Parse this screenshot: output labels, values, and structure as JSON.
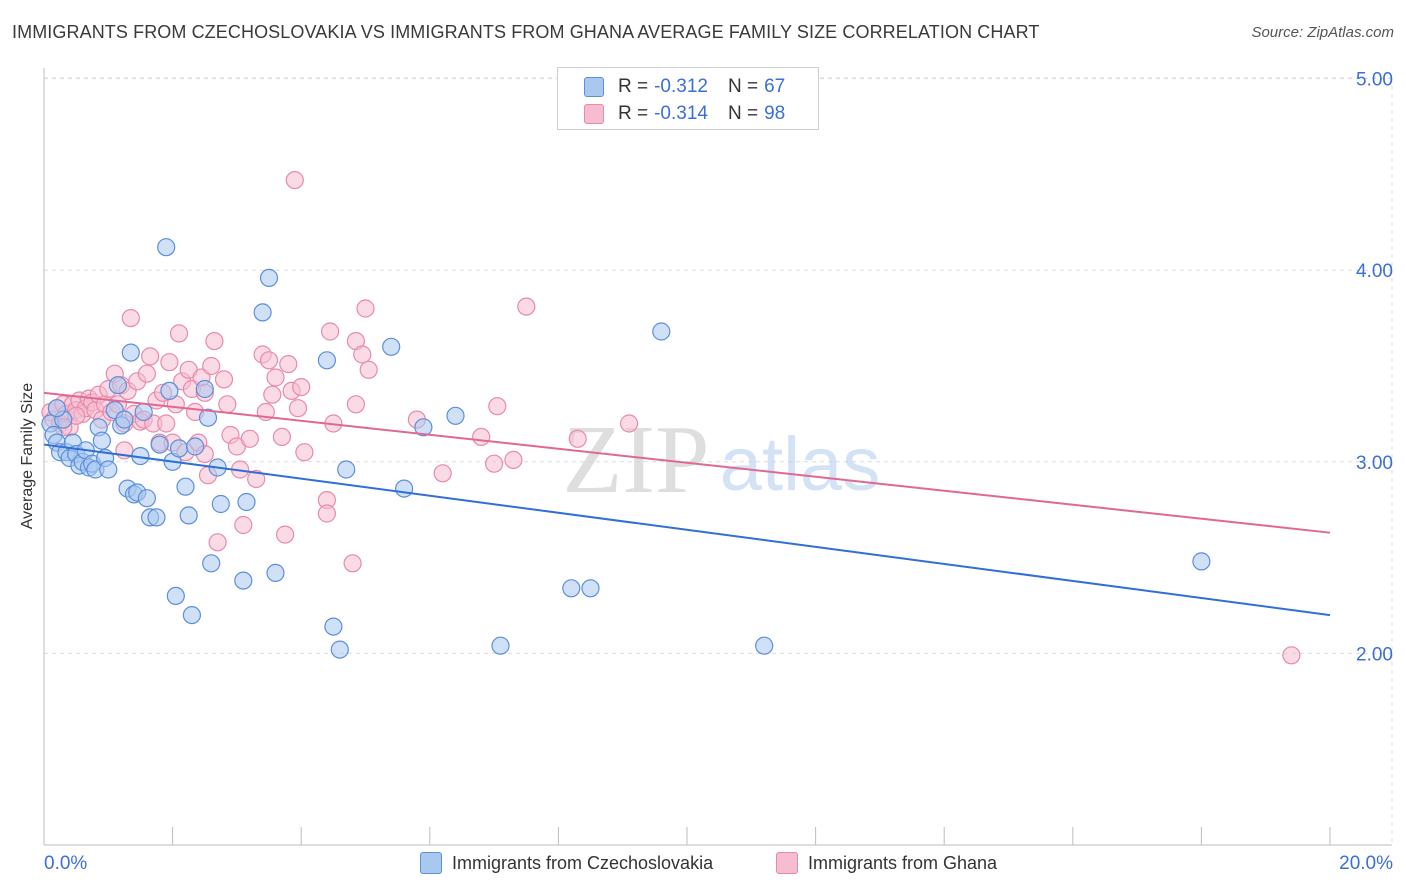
{
  "title": "IMMIGRANTS FROM CZECHOSLOVAKIA VS IMMIGRANTS FROM GHANA AVERAGE FAMILY SIZE CORRELATION CHART",
  "source": "Source: ZipAtlas.com",
  "watermark": {
    "zip": "ZIP",
    "atlas": "atlas"
  },
  "legend": {
    "rows": [
      {
        "r_label": "R =",
        "r_value": "-0.312",
        "n_label": "N =",
        "n_value": "67"
      },
      {
        "r_label": "R =",
        "r_value": "-0.314",
        "n_label": "N =",
        "n_value": "98"
      }
    ]
  },
  "colors": {
    "czech_fill": "#a9c8f0",
    "czech_stroke": "#5b8fdc",
    "czech_line": "#2f6fd6",
    "ghana_fill": "#f6bdd0",
    "ghana_stroke": "#e88aa9",
    "ghana_line": "#e06894",
    "axis_text": "#3a6fd8",
    "grid": "#dcdcdc"
  },
  "chart_data": {
    "type": "scatter",
    "xlabel": "",
    "ylabel": "Average Family Size",
    "xlim": [
      0,
      20
    ],
    "ylim": [
      1.0,
      5.1
    ],
    "x_tick_labels": [
      "0.0%",
      "20.0%"
    ],
    "y_ticks": [
      2.0,
      3.0,
      4.0,
      5.0
    ],
    "y_tick_labels": [
      "2.00",
      "3.00",
      "4.00",
      "5.00"
    ],
    "grid": true,
    "legend_position": "bottom",
    "series": [
      {
        "name": "Immigrants from Czechoslovakia",
        "trend": {
          "x": [
            0,
            20
          ],
          "y": [
            3.09,
            2.2
          ]
        },
        "points": [
          [
            0.1,
            3.2
          ],
          [
            0.15,
            3.14
          ],
          [
            0.2,
            3.1
          ],
          [
            0.25,
            3.05
          ],
          [
            0.3,
            3.22
          ],
          [
            0.35,
            3.05
          ],
          [
            0.4,
            3.02
          ],
          [
            0.45,
            3.1
          ],
          [
            0.5,
            3.04
          ],
          [
            0.55,
            2.98
          ],
          [
            0.6,
            3.0
          ],
          [
            0.65,
            3.06
          ],
          [
            0.7,
            2.97
          ],
          [
            0.75,
            2.99
          ],
          [
            0.8,
            2.96
          ],
          [
            0.85,
            3.18
          ],
          [
            0.9,
            3.11
          ],
          [
            0.95,
            3.02
          ],
          [
            1.0,
            2.96
          ],
          [
            1.1,
            3.27
          ],
          [
            1.15,
            3.4
          ],
          [
            1.2,
            3.19
          ],
          [
            1.25,
            3.22
          ],
          [
            1.3,
            2.86
          ],
          [
            1.35,
            3.57
          ],
          [
            1.4,
            2.83
          ],
          [
            1.45,
            2.84
          ],
          [
            1.5,
            3.03
          ],
          [
            1.55,
            3.26
          ],
          [
            1.6,
            2.81
          ],
          [
            1.65,
            2.71
          ],
          [
            1.75,
            2.71
          ],
          [
            1.8,
            3.09
          ],
          [
            1.9,
            4.12
          ],
          [
            1.95,
            3.37
          ],
          [
            2.0,
            3.0
          ],
          [
            2.05,
            2.3
          ],
          [
            2.1,
            3.07
          ],
          [
            2.2,
            2.87
          ],
          [
            2.25,
            2.72
          ],
          [
            2.3,
            2.2
          ],
          [
            2.35,
            3.08
          ],
          [
            2.5,
            3.38
          ],
          [
            2.55,
            3.23
          ],
          [
            2.6,
            2.47
          ],
          [
            2.7,
            2.97
          ],
          [
            2.75,
            2.78
          ],
          [
            3.1,
            2.38
          ],
          [
            3.15,
            2.79
          ],
          [
            3.4,
            3.78
          ],
          [
            3.5,
            3.96
          ],
          [
            3.6,
            2.42
          ],
          [
            4.4,
            3.53
          ],
          [
            4.5,
            2.14
          ],
          [
            4.6,
            2.02
          ],
          [
            4.7,
            2.96
          ],
          [
            5.4,
            3.6
          ],
          [
            5.6,
            2.86
          ],
          [
            5.9,
            3.18
          ],
          [
            6.4,
            3.24
          ],
          [
            7.1,
            2.04
          ],
          [
            8.2,
            2.34
          ],
          [
            8.5,
            2.34
          ],
          [
            9.6,
            3.68
          ],
          [
            11.2,
            2.04
          ],
          [
            18.0,
            2.48
          ],
          [
            0.2,
            3.28
          ]
        ]
      },
      {
        "name": "Immigrants from Ghana",
        "trend": {
          "x": [
            0,
            20
          ],
          "y": [
            3.36,
            2.63
          ]
        },
        "points": [
          [
            0.1,
            3.26
          ],
          [
            0.15,
            3.22
          ],
          [
            0.2,
            3.28
          ],
          [
            0.25,
            3.2
          ],
          [
            0.3,
            3.3
          ],
          [
            0.35,
            3.25
          ],
          [
            0.4,
            3.18
          ],
          [
            0.45,
            3.3
          ],
          [
            0.5,
            3.27
          ],
          [
            0.55,
            3.32
          ],
          [
            0.6,
            3.25
          ],
          [
            0.65,
            3.28
          ],
          [
            0.7,
            3.33
          ],
          [
            0.75,
            3.31
          ],
          [
            0.8,
            3.27
          ],
          [
            0.85,
            3.35
          ],
          [
            0.9,
            3.22
          ],
          [
            0.95,
            3.3
          ],
          [
            1.0,
            3.38
          ],
          [
            1.05,
            3.26
          ],
          [
            1.1,
            3.46
          ],
          [
            1.15,
            3.3
          ],
          [
            1.2,
            3.4
          ],
          [
            1.25,
            3.2
          ],
          [
            1.3,
            3.37
          ],
          [
            1.35,
            3.75
          ],
          [
            1.4,
            3.25
          ],
          [
            1.45,
            3.42
          ],
          [
            1.5,
            3.21
          ],
          [
            1.55,
            3.22
          ],
          [
            1.6,
            3.46
          ],
          [
            1.65,
            3.55
          ],
          [
            1.7,
            3.2
          ],
          [
            1.75,
            3.32
          ],
          [
            1.8,
            3.1
          ],
          [
            1.85,
            3.36
          ],
          [
            1.9,
            3.2
          ],
          [
            1.95,
            3.52
          ],
          [
            2.0,
            3.1
          ],
          [
            2.05,
            3.3
          ],
          [
            2.1,
            3.67
          ],
          [
            2.15,
            3.42
          ],
          [
            2.2,
            3.05
          ],
          [
            2.25,
            3.48
          ],
          [
            2.3,
            3.38
          ],
          [
            2.35,
            3.26
          ],
          [
            2.4,
            3.1
          ],
          [
            2.45,
            3.44
          ],
          [
            2.5,
            3.36
          ],
          [
            2.55,
            2.93
          ],
          [
            2.6,
            3.5
          ],
          [
            2.65,
            3.63
          ],
          [
            2.7,
            2.58
          ],
          [
            2.8,
            3.43
          ],
          [
            2.85,
            3.3
          ],
          [
            2.9,
            3.14
          ],
          [
            3.0,
            3.08
          ],
          [
            3.05,
            2.96
          ],
          [
            3.1,
            2.67
          ],
          [
            3.2,
            3.12
          ],
          [
            3.3,
            2.91
          ],
          [
            3.4,
            3.56
          ],
          [
            3.45,
            3.26
          ],
          [
            3.5,
            3.53
          ],
          [
            3.55,
            3.35
          ],
          [
            3.6,
            3.44
          ],
          [
            3.7,
            3.13
          ],
          [
            3.75,
            2.62
          ],
          [
            3.8,
            3.51
          ],
          [
            3.85,
            3.37
          ],
          [
            3.9,
            4.47
          ],
          [
            3.95,
            3.28
          ],
          [
            4.0,
            3.39
          ],
          [
            4.05,
            3.05
          ],
          [
            4.4,
            2.8
          ],
          [
            4.4,
            2.73
          ],
          [
            4.45,
            3.68
          ],
          [
            4.5,
            3.2
          ],
          [
            4.8,
            2.47
          ],
          [
            4.85,
            3.63
          ],
          [
            4.85,
            3.3
          ],
          [
            4.95,
            3.56
          ],
          [
            5.0,
            3.8
          ],
          [
            5.05,
            3.48
          ],
          [
            5.8,
            3.22
          ],
          [
            6.2,
            2.94
          ],
          [
            6.8,
            3.13
          ],
          [
            7.0,
            2.99
          ],
          [
            7.05,
            3.29
          ],
          [
            7.3,
            3.01
          ],
          [
            7.5,
            3.81
          ],
          [
            8.3,
            3.12
          ],
          [
            9.1,
            3.2
          ],
          [
            19.4,
            1.99
          ],
          [
            0.3,
            3.18
          ],
          [
            1.25,
            3.06
          ],
          [
            2.5,
            3.04
          ],
          [
            0.5,
            3.24
          ]
        ]
      }
    ]
  },
  "bottom_legend": [
    "Immigrants from Czechoslovakia",
    "Immigrants from Ghana"
  ]
}
